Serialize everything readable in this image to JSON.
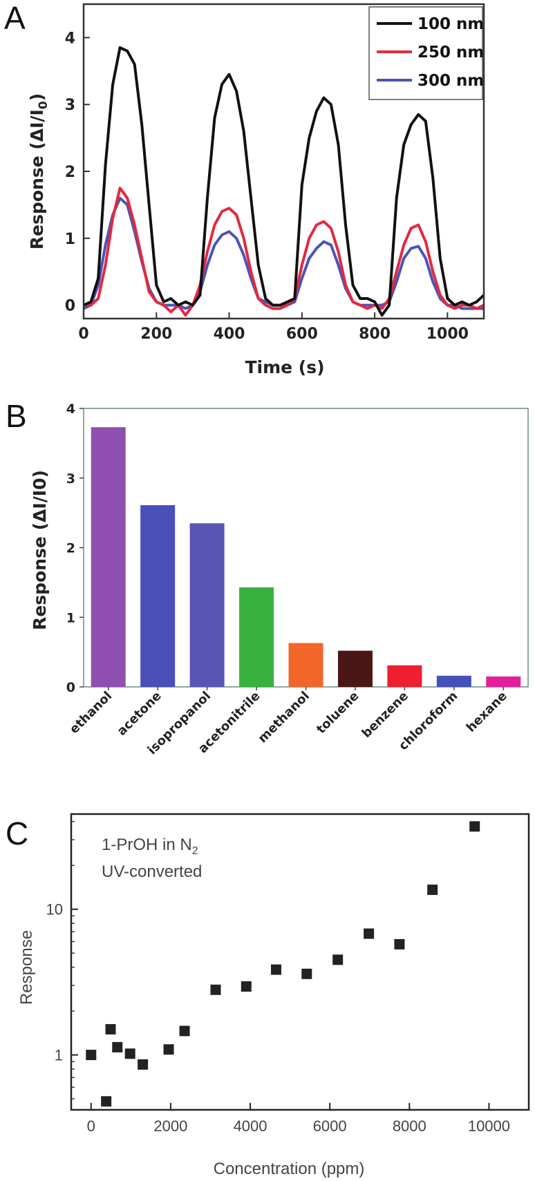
{
  "panels": {
    "a": "A",
    "b": "B",
    "c": "C"
  },
  "chart_data": [
    {
      "type": "line",
      "panel": "A",
      "title": "",
      "xlabel": "Time (s)",
      "ylabel": "Response (ΔI/I",
      "ylabel_sub": "0",
      "ylabel_end": ")",
      "xlim": [
        0,
        1100
      ],
      "ylim": [
        -0.2,
        4.5
      ],
      "xticks": [
        0,
        200,
        400,
        600,
        800,
        1000
      ],
      "yticks": [
        0,
        1,
        2,
        3,
        4
      ],
      "grid": false,
      "legend_position": "top-right",
      "series": [
        {
          "name": "100 nm",
          "color": "#111111",
          "points": [
            [
              0,
              0
            ],
            [
              20,
              0.05
            ],
            [
              40,
              0.4
            ],
            [
              60,
              2.1
            ],
            [
              80,
              3.3
            ],
            [
              100,
              3.85
            ],
            [
              120,
              3.8
            ],
            [
              140,
              3.6
            ],
            [
              160,
              2.7
            ],
            [
              180,
              1.5
            ],
            [
              200,
              0.3
            ],
            [
              220,
              0.05
            ],
            [
              240,
              0.1
            ],
            [
              260,
              0
            ],
            [
              280,
              0.05
            ],
            [
              300,
              0
            ],
            [
              320,
              0.15
            ],
            [
              340,
              1.6
            ],
            [
              360,
              2.8
            ],
            [
              380,
              3.3
            ],
            [
              400,
              3.45
            ],
            [
              420,
              3.2
            ],
            [
              440,
              2.6
            ],
            [
              460,
              1.6
            ],
            [
              480,
              0.6
            ],
            [
              500,
              0.1
            ],
            [
              520,
              0
            ],
            [
              540,
              0
            ],
            [
              560,
              0.05
            ],
            [
              580,
              0.1
            ],
            [
              600,
              1.8
            ],
            [
              620,
              2.5
            ],
            [
              640,
              2.9
            ],
            [
              660,
              3.1
            ],
            [
              680,
              3.0
            ],
            [
              700,
              2.4
            ],
            [
              720,
              1.2
            ],
            [
              740,
              0.3
            ],
            [
              760,
              0.1
            ],
            [
              780,
              0.1
            ],
            [
              800,
              0.05
            ],
            [
              820,
              -0.15
            ],
            [
              840,
              0
            ],
            [
              860,
              1.6
            ],
            [
              880,
              2.4
            ],
            [
              900,
              2.7
            ],
            [
              920,
              2.85
            ],
            [
              940,
              2.75
            ],
            [
              960,
              1.9
            ],
            [
              980,
              0.7
            ],
            [
              1000,
              0.1
            ],
            [
              1020,
              0
            ],
            [
              1040,
              0.05
            ],
            [
              1060,
              0
            ],
            [
              1080,
              0.05
            ],
            [
              1100,
              0.15
            ]
          ]
        },
        {
          "name": "250 nm",
          "color": "#e4283f",
          "points": [
            [
              0,
              0
            ],
            [
              20,
              0
            ],
            [
              40,
              0.1
            ],
            [
              60,
              0.6
            ],
            [
              80,
              1.3
            ],
            [
              100,
              1.75
            ],
            [
              120,
              1.6
            ],
            [
              140,
              1.2
            ],
            [
              160,
              0.7
            ],
            [
              180,
              0.2
            ],
            [
              200,
              0.05
            ],
            [
              220,
              0
            ],
            [
              240,
              -0.1
            ],
            [
              260,
              0
            ],
            [
              280,
              -0.15
            ],
            [
              300,
              0
            ],
            [
              320,
              0.3
            ],
            [
              340,
              0.8
            ],
            [
              360,
              1.2
            ],
            [
              380,
              1.4
            ],
            [
              400,
              1.45
            ],
            [
              420,
              1.35
            ],
            [
              440,
              1.0
            ],
            [
              460,
              0.5
            ],
            [
              480,
              0.1
            ],
            [
              500,
              0
            ],
            [
              520,
              -0.05
            ],
            [
              540,
              -0.05
            ],
            [
              560,
              0
            ],
            [
              580,
              0.1
            ],
            [
              600,
              0.6
            ],
            [
              620,
              1.0
            ],
            [
              640,
              1.2
            ],
            [
              660,
              1.25
            ],
            [
              680,
              1.15
            ],
            [
              700,
              0.8
            ],
            [
              720,
              0.3
            ],
            [
              740,
              0.05
            ],
            [
              760,
              0
            ],
            [
              780,
              -0.05
            ],
            [
              800,
              0
            ],
            [
              820,
              -0.05
            ],
            [
              840,
              0.1
            ],
            [
              860,
              0.5
            ],
            [
              880,
              0.9
            ],
            [
              900,
              1.15
            ],
            [
              920,
              1.2
            ],
            [
              940,
              0.95
            ],
            [
              960,
              0.5
            ],
            [
              980,
              0.15
            ],
            [
              1000,
              0
            ],
            [
              1020,
              -0.05
            ],
            [
              1040,
              0
            ],
            [
              1060,
              0
            ],
            [
              1080,
              -0.05
            ],
            [
              1100,
              0
            ]
          ]
        },
        {
          "name": "300 nm",
          "color": "#4a54b6",
          "points": [
            [
              0,
              -0.05
            ],
            [
              20,
              0
            ],
            [
              40,
              0.3
            ],
            [
              60,
              0.9
            ],
            [
              80,
              1.35
            ],
            [
              100,
              1.6
            ],
            [
              120,
              1.5
            ],
            [
              140,
              1.1
            ],
            [
              160,
              0.65
            ],
            [
              180,
              0.25
            ],
            [
              200,
              0.05
            ],
            [
              220,
              0
            ],
            [
              240,
              0
            ],
            [
              260,
              0
            ],
            [
              280,
              -0.05
            ],
            [
              300,
              0
            ],
            [
              320,
              0.2
            ],
            [
              340,
              0.6
            ],
            [
              360,
              0.9
            ],
            [
              380,
              1.05
            ],
            [
              400,
              1.1
            ],
            [
              420,
              1.0
            ],
            [
              440,
              0.75
            ],
            [
              460,
              0.4
            ],
            [
              480,
              0.1
            ],
            [
              500,
              0.05
            ],
            [
              520,
              0
            ],
            [
              540,
              0
            ],
            [
              560,
              0
            ],
            [
              580,
              0.05
            ],
            [
              600,
              0.4
            ],
            [
              620,
              0.7
            ],
            [
              640,
              0.85
            ],
            [
              660,
              0.95
            ],
            [
              680,
              0.9
            ],
            [
              700,
              0.6
            ],
            [
              720,
              0.25
            ],
            [
              740,
              0.05
            ],
            [
              760,
              0
            ],
            [
              780,
              0
            ],
            [
              800,
              0
            ],
            [
              820,
              0
            ],
            [
              840,
              0.05
            ],
            [
              860,
              0.35
            ],
            [
              880,
              0.7
            ],
            [
              900,
              0.85
            ],
            [
              920,
              0.88
            ],
            [
              940,
              0.7
            ],
            [
              960,
              0.35
            ],
            [
              980,
              0.1
            ],
            [
              1000,
              0
            ],
            [
              1020,
              0
            ],
            [
              1040,
              -0.05
            ],
            [
              1060,
              -0.05
            ],
            [
              1080,
              -0.05
            ],
            [
              1100,
              -0.05
            ]
          ]
        }
      ]
    },
    {
      "type": "bar",
      "panel": "B",
      "title": "",
      "xlabel": "",
      "ylabel": "Response (ΔI/I0)",
      "ylim": [
        0,
        4
      ],
      "yticks": [
        0,
        1,
        2,
        3,
        4
      ],
      "grid": false,
      "categories": [
        "ethanol",
        "acetone",
        "isopropanol",
        "acetonitrile",
        "methanol",
        "toluene",
        "benzene",
        "chloroform",
        "hexane"
      ],
      "values": [
        3.73,
        2.61,
        2.35,
        1.43,
        0.63,
        0.52,
        0.31,
        0.16,
        0.15
      ],
      "colors": [
        "#8f4fb0",
        "#4850b8",
        "#5a55b5",
        "#38b23c",
        "#f2662a",
        "#4a1616",
        "#ee1f2e",
        "#4650bb",
        "#e2209c"
      ]
    },
    {
      "type": "scatter",
      "panel": "C",
      "title": "",
      "annotation_line1_prefix": "1-PrOH in N",
      "annotation_line1_sub": "2",
      "annotation_line2": "UV-converted",
      "xlabel": "Concentration (ppm)",
      "ylabel": "Response",
      "xlim": [
        -500,
        11000
      ],
      "ylim": [
        0.42,
        45
      ],
      "y_scale": "log",
      "xticks": [
        0,
        2000,
        4000,
        6000,
        8000,
        10000
      ],
      "yticks": [
        1,
        10
      ],
      "grid": false,
      "marker": "square",
      "marker_color": "#222222",
      "points": [
        [
          0,
          1.0
        ],
        [
          380,
          0.48
        ],
        [
          490,
          1.5
        ],
        [
          660,
          1.13
        ],
        [
          980,
          1.02
        ],
        [
          1300,
          0.86
        ],
        [
          1950,
          1.09
        ],
        [
          2350,
          1.46
        ],
        [
          3130,
          2.8
        ],
        [
          3900,
          2.95
        ],
        [
          4650,
          3.85
        ],
        [
          5420,
          3.6
        ],
        [
          6200,
          4.5
        ],
        [
          6980,
          6.8
        ],
        [
          7750,
          5.75
        ],
        [
          8580,
          13.6
        ],
        [
          9640,
          37.0
        ]
      ]
    }
  ]
}
